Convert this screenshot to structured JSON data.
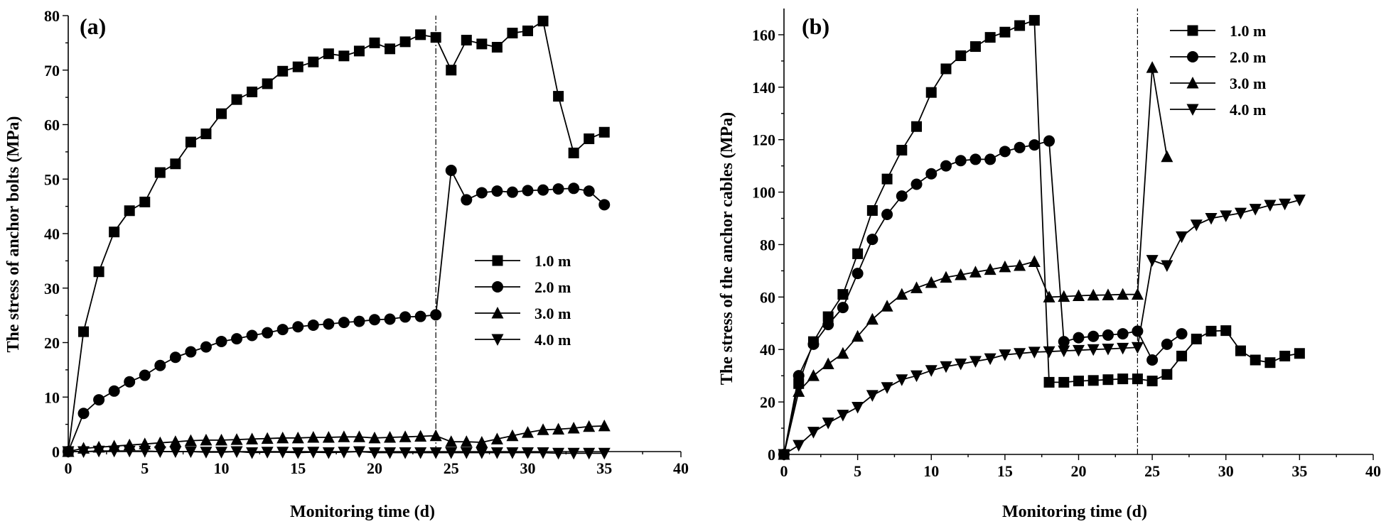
{
  "chart_data": [
    {
      "type": "line",
      "panel_label": "(a)",
      "xlabel": "Monitoring time (d)",
      "ylabel": "The stress of anchor bolts (MPa)",
      "xlim": [
        0,
        40
      ],
      "ylim": [
        0,
        80
      ],
      "xticks": [
        0,
        5,
        10,
        15,
        20,
        25,
        30,
        35,
        40
      ],
      "yticks": [
        0,
        10,
        20,
        30,
        40,
        50,
        60,
        70,
        80
      ],
      "grid": false,
      "legend": "center-right",
      "reference_line_x": 24,
      "x": [
        0,
        1,
        2,
        3,
        4,
        5,
        6,
        7,
        8,
        9,
        10,
        11,
        12,
        13,
        14,
        15,
        16,
        17,
        18,
        19,
        20,
        21,
        22,
        23,
        24,
        25,
        26,
        27,
        28,
        29,
        30,
        31,
        32,
        33,
        34,
        35
      ],
      "series": [
        {
          "name": "1.0 m",
          "marker": "square",
          "values": [
            0,
            22,
            33,
            40.3,
            44.2,
            45.8,
            51.2,
            52.8,
            56.8,
            58.3,
            62,
            64.6,
            66,
            67.5,
            69.8,
            70.6,
            71.5,
            73,
            72.6,
            73.5,
            75,
            73.9,
            75.2,
            76.5,
            76,
            70,
            75.5,
            74.8,
            74.2,
            76.8,
            77.2,
            79,
            65.2,
            54.8,
            57.4,
            58.6
          ]
        },
        {
          "name": "2.0 m",
          "marker": "circle",
          "values": [
            0,
            7,
            9.5,
            11.1,
            12.8,
            14,
            15.8,
            17.3,
            18.3,
            19.2,
            20.2,
            20.7,
            21.3,
            21.8,
            22.4,
            22.9,
            23.2,
            23.4,
            23.7,
            23.9,
            24.2,
            24.3,
            24.7,
            24.8,
            25.1,
            51.6,
            46.2,
            47.5,
            47.8,
            47.6,
            47.9,
            48,
            48.2,
            48.3,
            47.8,
            45.3
          ]
        },
        {
          "name": "3.0 m",
          "marker": "triangle-up",
          "values": [
            0,
            0.6,
            0.8,
            1,
            1.2,
            1.4,
            1.6,
            1.8,
            2,
            2.1,
            2.1,
            2.2,
            2.3,
            2.4,
            2.5,
            2.5,
            2.6,
            2.6,
            2.7,
            2.7,
            2.5,
            2.6,
            2.7,
            2.8,
            2.9,
            1.8,
            1.8,
            1.7,
            2.3,
            2.9,
            3.5,
            4,
            4.1,
            4.3,
            4.6,
            4.7
          ]
        },
        {
          "name": "4.0 m",
          "marker": "triangle-down",
          "values": [
            0,
            0,
            0.1,
            0.1,
            0.1,
            0.1,
            0,
            0,
            0,
            -0.1,
            -0.1,
            0,
            -0.2,
            -0.1,
            -0.1,
            -0.2,
            -0.1,
            -0.2,
            -0.1,
            0,
            -0.2,
            -0.2,
            -0.2,
            -0.2,
            -0.2,
            -0.2,
            -0.2,
            -0.2,
            -0.2,
            -0.2,
            -0.2,
            -0.2,
            -0.3,
            -0.3,
            -0.3,
            -0.3
          ]
        }
      ]
    },
    {
      "type": "line",
      "panel_label": "(b)",
      "xlabel": "Monitoring time (d)",
      "ylabel": "The stress of the anchor cables (MPa)",
      "xlim": [
        0,
        40
      ],
      "ylim": [
        0,
        170
      ],
      "xticks": [
        0,
        5,
        10,
        15,
        20,
        25,
        30,
        35,
        40
      ],
      "yticks": [
        0,
        20,
        40,
        60,
        80,
        100,
        120,
        140,
        160
      ],
      "grid": false,
      "legend": "top-right",
      "reference_line_x": 24,
      "series": [
        {
          "name": "1.0 m",
          "marker": "square",
          "x": [
            0,
            1,
            2,
            3,
            4,
            5,
            6,
            7,
            8,
            9,
            10,
            11,
            12,
            13,
            14,
            15,
            16,
            17,
            18,
            19,
            20,
            21,
            22,
            23,
            24,
            25,
            26,
            27,
            28,
            29,
            30,
            31,
            32,
            33,
            34,
            35
          ],
          "values": [
            0,
            27,
            43,
            52.5,
            61,
            76.5,
            93,
            105,
            116,
            125,
            138,
            147,
            152,
            155.5,
            159,
            161,
            163.5,
            165.5,
            27.5,
            27.5,
            28,
            28.2,
            28.5,
            28.8,
            28.8,
            28,
            30.5,
            37.5,
            44,
            47,
            47.2,
            39.5,
            36,
            35,
            37.5,
            38.5
          ]
        },
        {
          "name": "2.0 m",
          "marker": "circle",
          "x": [
            0,
            1,
            2,
            3,
            4,
            5,
            6,
            7,
            8,
            9,
            10,
            11,
            12,
            13,
            14,
            15,
            16,
            17,
            18,
            19,
            20,
            21,
            22,
            23,
            24,
            25,
            26,
            27
          ],
          "values": [
            0,
            30,
            42,
            49.5,
            56,
            69,
            82,
            91.5,
            98.5,
            103,
            107,
            110,
            112,
            112.5,
            112.5,
            115.5,
            117,
            118,
            119.5,
            43,
            44.5,
            45,
            45.5,
            46,
            47,
            36,
            42,
            46
          ]
        },
        {
          "name": "3.0 m",
          "marker": "triangle-up",
          "x": [
            0,
            1,
            2,
            3,
            4,
            5,
            6,
            7,
            8,
            9,
            10,
            11,
            12,
            13,
            14,
            15,
            16,
            17,
            18,
            19,
            20,
            21,
            22,
            23,
            24,
            25,
            26
          ],
          "values": [
            0,
            24,
            30,
            34.5,
            38.5,
            45,
            51.5,
            56.5,
            61,
            63.5,
            65.5,
            67.5,
            68.5,
            69.5,
            70.5,
            71.5,
            72,
            73.5,
            60,
            60.2,
            60.5,
            60.7,
            60.8,
            61,
            61,
            147.5,
            113.5
          ]
        },
        {
          "name": "4.0 m",
          "marker": "triangle-down",
          "x": [
            0,
            1,
            2,
            3,
            4,
            5,
            6,
            7,
            8,
            9,
            10,
            11,
            12,
            13,
            14,
            15,
            16,
            17,
            18,
            19,
            20,
            21,
            22,
            23,
            24,
            25,
            26,
            27,
            28,
            29,
            30,
            31,
            32,
            33,
            34,
            35
          ],
          "values": [
            0,
            3.5,
            8.5,
            12,
            15,
            18,
            22.5,
            25.5,
            28.5,
            30,
            32,
            33.5,
            34.5,
            35.5,
            36.5,
            38,
            38.5,
            39,
            39.2,
            39.5,
            39.7,
            40,
            40.2,
            40.5,
            40.8,
            74,
            72,
            83,
            87.5,
            90,
            91,
            92,
            93.5,
            95,
            95.5,
            97
          ]
        }
      ]
    }
  ]
}
